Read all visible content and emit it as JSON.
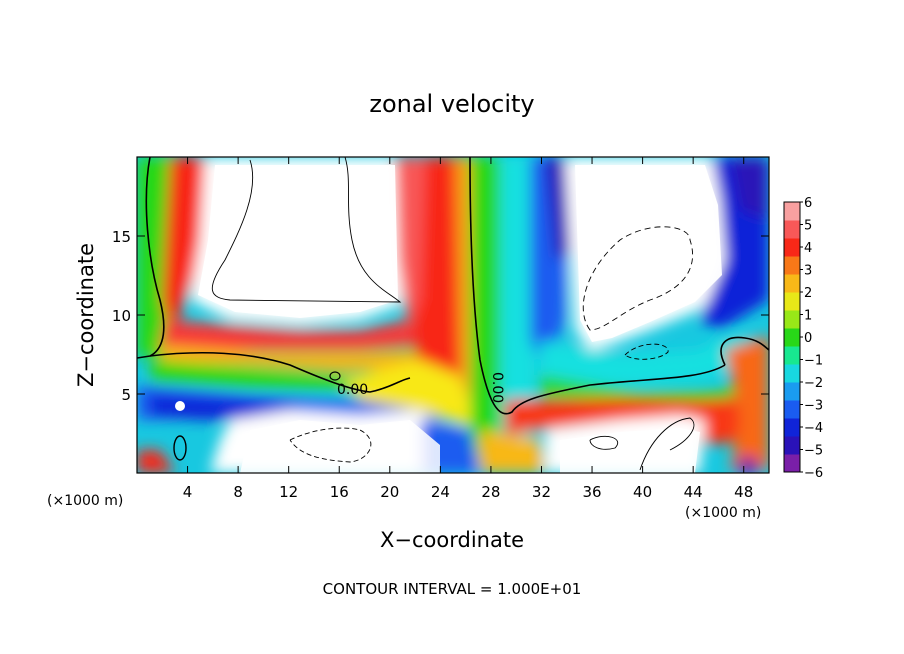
{
  "chart_data": {
    "type": "heatmap",
    "title": "zonal velocity",
    "xlabel": "X−coordinate",
    "ylabel": "Z−coordinate",
    "x_unit_label_left": "(×1000 m)",
    "x_unit_label_right": "(×1000 m)",
    "footnote": "CONTOUR INTERVAL = 1.000E+01",
    "xlim": [
      0,
      50
    ],
    "ylim": [
      0,
      20
    ],
    "x_ticks": [
      {
        "v": 4,
        "label": "4"
      },
      {
        "v": 8,
        "label": "8"
      },
      {
        "v": 12,
        "label": "12"
      },
      {
        "v": 16,
        "label": "16"
      },
      {
        "v": 20,
        "label": "20"
      },
      {
        "v": 24,
        "label": "24"
      },
      {
        "v": 28,
        "label": "28"
      },
      {
        "v": 32,
        "label": "32"
      },
      {
        "v": 36,
        "label": "36"
      },
      {
        "v": 40,
        "label": "40"
      },
      {
        "v": 44,
        "label": "44"
      },
      {
        "v": 48,
        "label": "48"
      }
    ],
    "y_ticks": [
      {
        "v": 5,
        "label": "5"
      },
      {
        "v": 10,
        "label": "10"
      },
      {
        "v": 15,
        "label": "15"
      }
    ],
    "colorbar": {
      "range": [
        -6,
        6
      ],
      "labels": [
        "6",
        "5",
        "4",
        "3",
        "2",
        "1",
        "0",
        "−1",
        "−2",
        "−3",
        "−4",
        "−5",
        "−6"
      ],
      "colors": [
        "#7a1fa8",
        "#2a12b8",
        "#1024d8",
        "#1a5cf0",
        "#1a9cf0",
        "#18d8e0",
        "#18e890",
        "#28d818",
        "#98e818",
        "#e8e818",
        "#f8b818",
        "#f87818",
        "#f82818",
        "#f85858",
        "#f8a0a0"
      ]
    },
    "contour_labels": [
      {
        "x": 17.5,
        "y": 5.3,
        "text": "0.00"
      },
      {
        "x": 27.5,
        "y": 6.2,
        "text": "0.00"
      }
    ],
    "saturated_regions_note": "white areas exceed colorbar range"
  }
}
